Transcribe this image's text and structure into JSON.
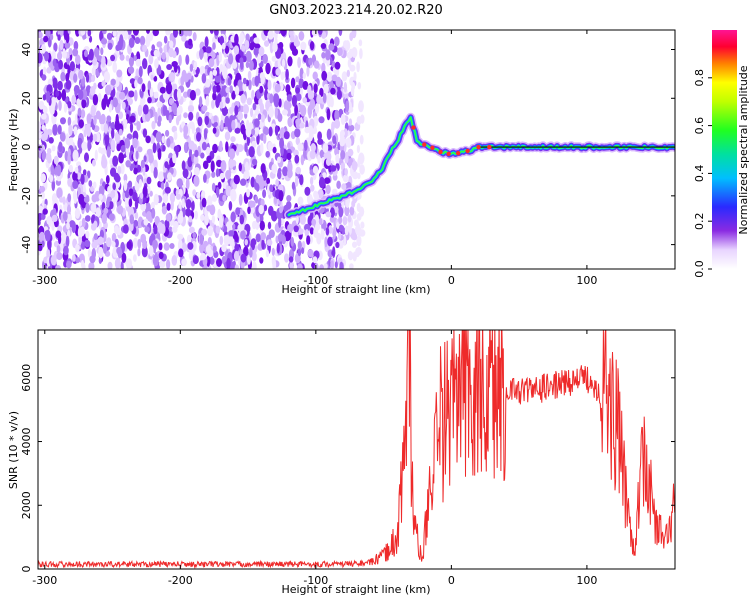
{
  "title": "GN03.2023.214.20.02.R20",
  "chart_data": [
    {
      "type": "heatmap",
      "xlabel": "Height of straight line (km)",
      "ylabel": "Frequency (Hz)",
      "xlim": [
        -305,
        165
      ],
      "ylim": [
        -50,
        48
      ],
      "xticks": [
        -300,
        -200,
        -100,
        0,
        100
      ],
      "yticks": [
        -40,
        -20,
        0,
        20,
        40
      ],
      "colorbar": {
        "label": "Normalized spectral amplitude",
        "range": [
          0,
          1
        ],
        "ticks": [
          0.0,
          0.2,
          0.4,
          0.6,
          0.8
        ],
        "colors": [
          "#ffffff",
          "#c8a0f0",
          "#8a2be2",
          "#4040ff",
          "#00c0ff",
          "#00e080",
          "#30ff00",
          "#ffff00",
          "#ff8000",
          "#ff0040",
          "#ff1493"
        ]
      },
      "ridge": [
        {
          "x": -120,
          "y": -28
        },
        {
          "x": -100,
          "y": -24
        },
        {
          "x": -85,
          "y": -21
        },
        {
          "x": -70,
          "y": -18
        },
        {
          "x": -58,
          "y": -14
        },
        {
          "x": -50,
          "y": -8
        },
        {
          "x": -45,
          "y": -2
        },
        {
          "x": -40,
          "y": 2
        },
        {
          "x": -35,
          "y": 8
        },
        {
          "x": -30,
          "y": 12
        },
        {
          "x": -25,
          "y": 2
        },
        {
          "x": -15,
          "y": 0
        },
        {
          "x": -8,
          "y": -2
        },
        {
          "x": 0,
          "y": -3
        },
        {
          "x": 10,
          "y": -2
        },
        {
          "x": 20,
          "y": 0
        },
        {
          "x": 40,
          "y": 0
        },
        {
          "x": 80,
          "y": 0
        },
        {
          "x": 120,
          "y": 0
        },
        {
          "x": 165,
          "y": 0
        }
      ]
    },
    {
      "type": "line",
      "xlabel": "Height of straight line (km)",
      "ylabel": "SNR (10 * v/v)",
      "xlim": [
        -305,
        165
      ],
      "ylim": [
        0,
        7500
      ],
      "xticks": [
        -300,
        -200,
        -100,
        0,
        100
      ],
      "yticks": [
        0,
        2000,
        4000,
        6000
      ],
      "color": "#ee2a2a",
      "envelope": [
        {
          "x": -305,
          "y": 150
        },
        {
          "x": -80,
          "y": 150
        },
        {
          "x": -60,
          "y": 200
        },
        {
          "x": -50,
          "y": 400
        },
        {
          "x": -40,
          "y": 1000
        },
        {
          "x": -34,
          "y": 4000
        },
        {
          "x": -31,
          "y": 7500
        },
        {
          "x": -28,
          "y": 1500
        },
        {
          "x": -22,
          "y": 300
        },
        {
          "x": -15,
          "y": 2500
        },
        {
          "x": -8,
          "y": 4500
        },
        {
          "x": 0,
          "y": 5000
        },
        {
          "x": 10,
          "y": 5400
        },
        {
          "x": 20,
          "y": 5600
        },
        {
          "x": 40,
          "y": 5600
        },
        {
          "x": 60,
          "y": 5600
        },
        {
          "x": 80,
          "y": 5800
        },
        {
          "x": 100,
          "y": 6000
        },
        {
          "x": 115,
          "y": 5400
        },
        {
          "x": 122,
          "y": 4500
        },
        {
          "x": 130,
          "y": 2000
        },
        {
          "x": 135,
          "y": 500
        },
        {
          "x": 142,
          "y": 3800
        },
        {
          "x": 150,
          "y": 1500
        },
        {
          "x": 158,
          "y": 900
        },
        {
          "x": 165,
          "y": 2000
        }
      ]
    }
  ]
}
